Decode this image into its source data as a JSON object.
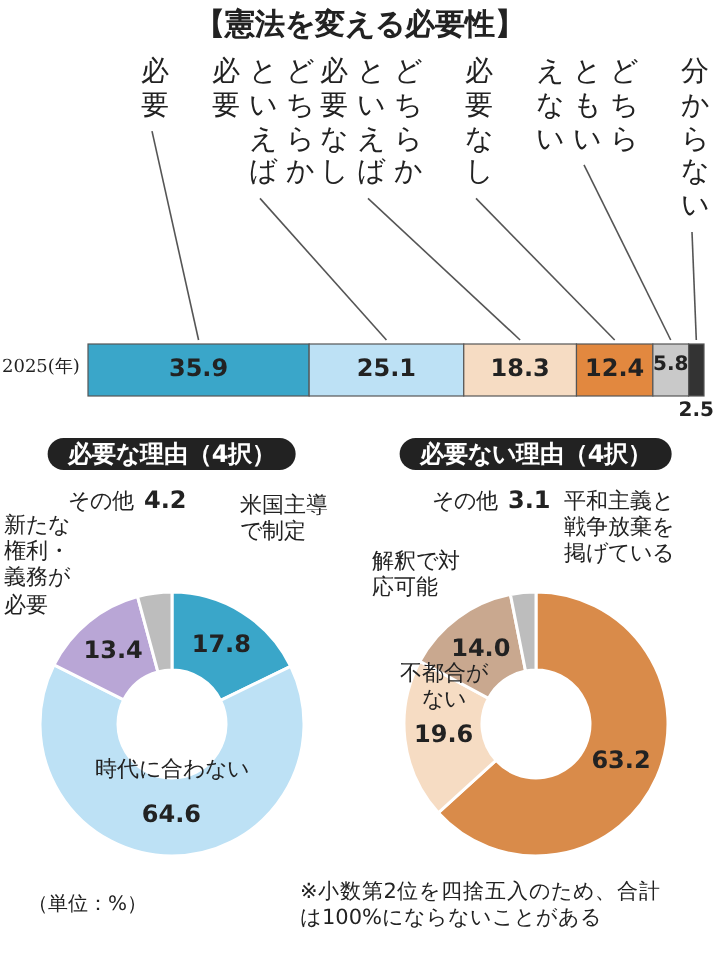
{
  "chart_data": [
    {
      "type": "bar",
      "orientation": "horizontal",
      "stacked": true,
      "data_labels": true,
      "title": "【憲法を変える必要性】",
      "categories": [
        "2025(年)"
      ],
      "series": [
        {
          "name": "必要",
          "color": "#3aa6c9",
          "values": [
            35.9
          ]
        },
        {
          "name": "どちらかといえば必要",
          "color": "#bde1f5",
          "values": [
            25.1
          ]
        },
        {
          "name": "どちらかといえば必要なし",
          "color": "#f6dcc3",
          "values": [
            18.3
          ]
        },
        {
          "name": "必要なし",
          "color": "#e2883f",
          "values": [
            12.4
          ]
        },
        {
          "name": "どちらともいえない",
          "color": "#c9c9c9",
          "values": [
            5.8
          ]
        },
        {
          "name": "分からない",
          "color": "#333333",
          "values": [
            2.5
          ]
        }
      ]
    },
    {
      "type": "donut",
      "data_labels": true,
      "title": "必要な理由（4択）",
      "categories": [
        "米国主導で制定",
        "時代に合わない",
        "新たな権利・義務が必要",
        "その他"
      ],
      "values": [
        17.8,
        64.6,
        13.4,
        4.2
      ],
      "colors": [
        "#3aa6c9",
        "#bde1f5",
        "#b9a6d6",
        "#bdbdbd"
      ]
    },
    {
      "type": "donut",
      "data_labels": true,
      "title": "必要ない理由（4択）",
      "categories": [
        "平和主義と戦争放棄を掲げている",
        "不都合がない",
        "解釈で対応可能",
        "その他"
      ],
      "values": [
        63.2,
        19.6,
        14.0,
        3.1
      ],
      "value_labels": [
        "63.2",
        "19.6",
        "14.0",
        "3.1"
      ],
      "colors": [
        "#d98b4a",
        "#f6dcc3",
        "#c9a88f",
        "#bdbdbd"
      ],
      "annotations": [
        "（単位：%）",
        "※小数第2位を四捨五入のため、合計は100%にならないことがある"
      ]
    }
  ]
}
